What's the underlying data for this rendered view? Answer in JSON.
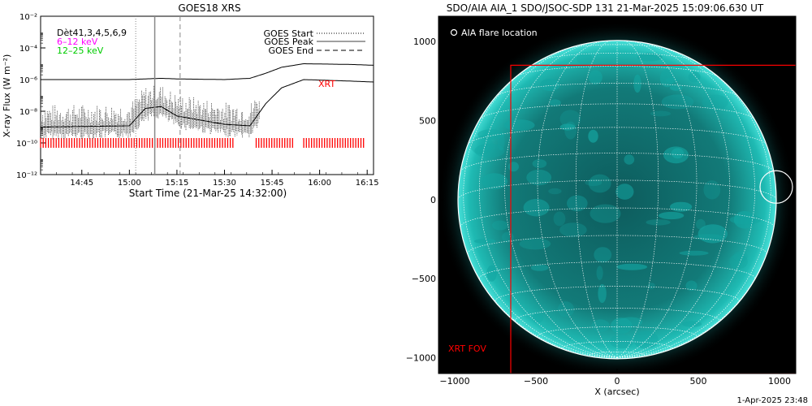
{
  "footer": {
    "timestamp": "1-Apr-2025 23:48"
  },
  "chart_data": [
    {
      "type": "line",
      "title": "GOES18 XRS",
      "xlabel": "Start Time (21-Mar-25 14:32:00)",
      "ylabel": "X-ray Flux (W m⁻²)",
      "ylog": true,
      "xlim_minutes_after_1432": [
        0,
        105
      ],
      "ylim": [
        1e-12,
        0.01
      ],
      "x_ticks": [
        "14:45",
        "15:00",
        "15:15",
        "15:30",
        "15:45",
        "16:00",
        "16:15"
      ],
      "y_ticks": [
        "10⁻¹²",
        "10⁻¹⁰",
        "10⁻⁸",
        "10⁻⁶",
        "10⁻⁴",
        "10⁻²"
      ],
      "detector_labels": [
        {
          "text": "Dèt41,3,4,5,6,9",
          "color": "#000000"
        },
        {
          "text": "6–12 keV",
          "color": "#ff00ff"
        },
        {
          "text": "12–25 keV",
          "color": "#00cc00"
        }
      ],
      "legend": [
        {
          "label": "GOES Start",
          "style": "dotted"
        },
        {
          "label": "GOES Peak",
          "style": "solid"
        },
        {
          "label": "GOES End",
          "style": "dashed"
        }
      ],
      "legend_position": "top-right",
      "annotation": {
        "text": "XRT",
        "color": "#ff0000"
      },
      "event_lines": {
        "start": "15:02",
        "peak": "15:08",
        "end": "15:16"
      },
      "series": [
        {
          "color": "#000000",
          "x": [
            "14:32",
            "15:00",
            "15:05",
            "15:10",
            "15:15",
            "15:30",
            "15:38",
            "15:43",
            "15:48",
            "15:55",
            "16:10",
            "16:17"
          ],
          "values": [
            1e-06,
            1e-06,
            1.1e-06,
            1.2e-06,
            1.1e-06,
            1e-06,
            1.2e-06,
            2.5e-06,
            6e-06,
            1e-05,
            9e-06,
            8e-06
          ]
        },
        {
          "color": "#000000",
          "x": [
            "14:32",
            "15:00",
            "15:05",
            "15:10",
            "15:15",
            "15:30",
            "15:38",
            "15:43",
            "15:48",
            "15:55",
            "16:10",
            "16:17"
          ],
          "values": [
            1e-09,
            1.2e-09,
            1.5e-08,
            2e-08,
            5e-09,
            1.5e-09,
            1.2e-09,
            3e-08,
            3e-07,
            1e-06,
            8e-07,
            7e-07
          ]
        }
      ],
      "xrt_coverage": [
        [
          "14:32",
          "15:33"
        ],
        [
          "15:40",
          "15:52"
        ],
        [
          "15:55",
          "16:14"
        ]
      ],
      "xrt_coverage_color": "#ff0000",
      "xrt_level": 1e-10
    },
    {
      "type": "image",
      "title": "SDO/AIA AIA_1 SDO/JSOC-SDP 131 21-Mar-2025 15:09:06.630 UT",
      "xlabel": "X (arcsec)",
      "xlim": [
        -1100,
        1100
      ],
      "ylim": [
        -1100,
        1160
      ],
      "x_ticks": [
        "−1000",
        "−500",
        "0",
        "500",
        "1000"
      ],
      "y_ticks": [
        "−1000",
        "−500",
        "0",
        "500",
        "1000"
      ],
      "solar_radius_arcsec": 980,
      "legend_text": "AIA flare location",
      "flare_location": [
        980,
        80
      ],
      "flare_circle_radius_arcsec": 100,
      "xrt_fov_label": "XRT FOV",
      "xrt_fov": {
        "x": [
          -655,
          1145
        ],
        "y": [
          -1100,
          850
        ]
      },
      "fov_color": "#ff0000",
      "disk_color": "#14a6a2"
    }
  ]
}
